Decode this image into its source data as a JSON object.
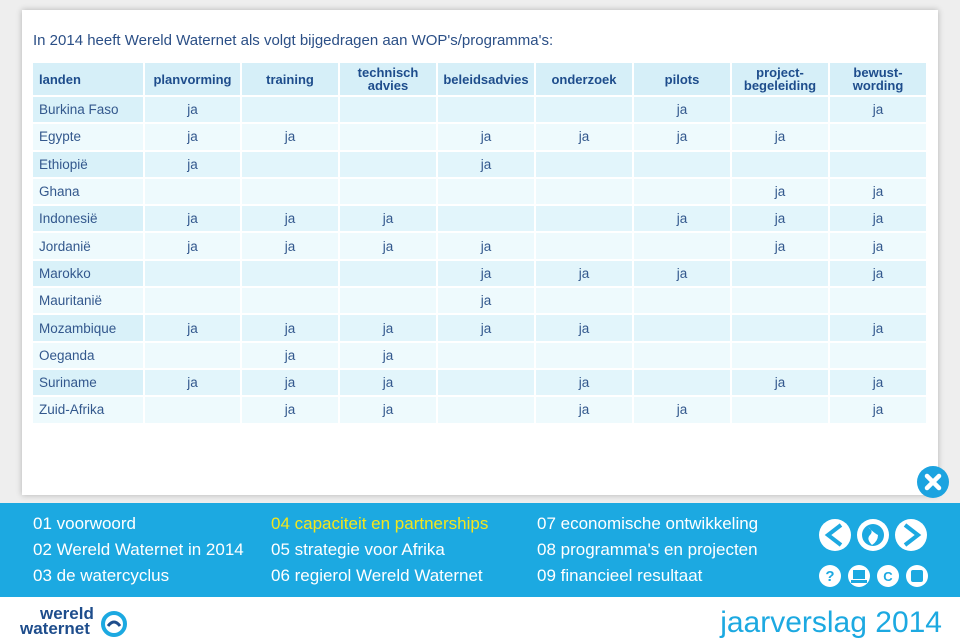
{
  "title": "In 2014 heeft Wereld Waternet als volgt bijgedragen aan WOP's/programma's:",
  "table": {
    "header": [
      "landen",
      "planvorming",
      "training",
      "technisch\nadvies",
      "beleidsadvies",
      "onderzoek",
      "pilots",
      "project-\nbegeleiding",
      "bewust-\nwording"
    ],
    "rows": [
      [
        "Burkina Faso",
        "ja",
        null,
        null,
        null,
        null,
        "ja",
        null,
        "ja"
      ],
      [
        "Egypte",
        "ja",
        "ja",
        null,
        "ja",
        "ja",
        "ja",
        "ja",
        null
      ],
      [
        "Ethiopië",
        "ja",
        null,
        null,
        "ja",
        null,
        null,
        null,
        null
      ],
      [
        "Ghana",
        null,
        null,
        null,
        null,
        null,
        null,
        "ja",
        "ja"
      ],
      [
        "Indonesië",
        "ja",
        "ja",
        "ja",
        null,
        null,
        "ja",
        "ja",
        "ja"
      ],
      [
        "Jordanië",
        "ja",
        "ja",
        "ja",
        "ja",
        null,
        null,
        "ja",
        "ja"
      ],
      [
        "Marokko",
        null,
        null,
        null,
        "ja",
        "ja",
        "ja",
        null,
        "ja"
      ],
      [
        "Mauritanië",
        null,
        null,
        null,
        "ja",
        null,
        null,
        null,
        null
      ],
      [
        "Mozambique",
        "ja",
        "ja",
        "ja",
        "ja",
        "ja",
        null,
        null,
        "ja"
      ],
      [
        "Oeganda",
        null,
        "ja",
        "ja",
        null,
        null,
        null,
        null,
        null
      ],
      [
        "Suriname",
        "ja",
        "ja",
        "ja",
        null,
        "ja",
        null,
        "ja",
        "ja"
      ],
      [
        "Zuid-Afrika",
        null,
        "ja",
        "ja",
        null,
        "ja",
        "ja",
        null,
        "ja"
      ]
    ]
  },
  "menu": [
    {
      "label": "01 voorwoord"
    },
    {
      "label": "02 Wereld Waternet in 2014"
    },
    {
      "label": "03 de watercyclus"
    },
    {
      "label": "04 capaciteit en partnerships",
      "active": true
    },
    {
      "label": "05 strategie voor Afrika"
    },
    {
      "label": "06 regierol Wereld Waternet"
    },
    {
      "label": "07 economische ontwikkeling"
    },
    {
      "label": "08 programma's en projecten"
    },
    {
      "label": "09 financieel resultaat"
    }
  ],
  "icons": {
    "help": "?",
    "copyright": "C"
  },
  "logo": [
    "wereld",
    "waternet"
  ],
  "footer_title": "jaarverslag 2014"
}
